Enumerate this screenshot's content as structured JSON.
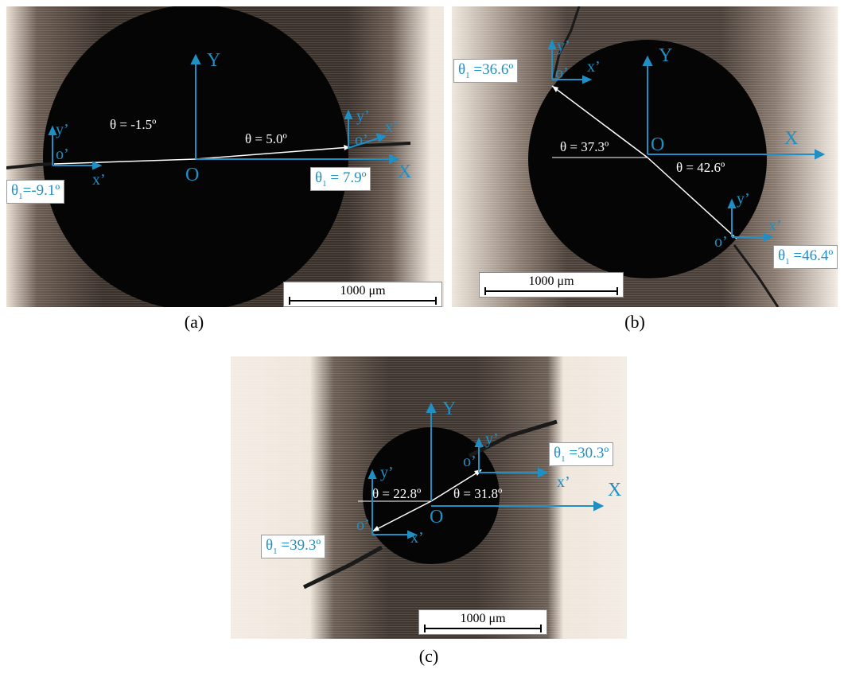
{
  "colors": {
    "axis": "#1f8fc4",
    "background_light": "#efe8e0",
    "texture": "#6b5e54",
    "hole": "#050505",
    "crack": "#1a1a1a",
    "annotation": "#ffffff"
  },
  "scale_bar": "1000 μm",
  "panels": [
    {
      "caption": "(a)",
      "X": "X",
      "Y": "Y",
      "O": "O",
      "local_left": {
        "x": "x’",
        "y": "y’",
        "o": "o’"
      },
      "local_right": {
        "x": "x’",
        "y": "y’",
        "o": "o’"
      },
      "theta_left": "θ = -1.5º",
      "theta_right": "θ = 5.0º",
      "theta1_left_sym": "θ",
      "theta1_left_sub": "1",
      "theta1_left_val": "=-9.1º",
      "theta1_right_sym": "θ",
      "theta1_right_sub": "1",
      "theta1_right_val": " = 7.9º"
    },
    {
      "caption": "(b)",
      "X": "X",
      "Y": "Y",
      "O": "O",
      "local_top": {
        "x": "x’",
        "y": "y’",
        "o": "o’"
      },
      "local_bottom": {
        "x": "x’",
        "y": "y’",
        "o": "o’"
      },
      "theta_left": "θ = 37.3º",
      "theta_right": "θ = 42.6º",
      "theta1_top_sym": "θ",
      "theta1_top_sub": "1",
      "theta1_top_val": " =36.6º",
      "theta1_bottom_sym": "θ",
      "theta1_bottom_sub": "1",
      "theta1_bottom_val": " =46.4º"
    },
    {
      "caption": "(c)",
      "X": "X",
      "Y": "Y",
      "O": "O",
      "local_left": {
        "x": "x’",
        "y": "y’",
        "o": "o’"
      },
      "local_right": {
        "x": "x’",
        "y": "y’",
        "o": "o’"
      },
      "theta_left": "θ = 22.8º",
      "theta_right": "θ = 31.8º",
      "theta1_right_sym": "θ",
      "theta1_right_sub": "1",
      "theta1_right_val": " =30.3º",
      "theta1_left_sym": "θ",
      "theta1_left_sub": "1",
      "theta1_left_val": " =39.3º"
    }
  ]
}
